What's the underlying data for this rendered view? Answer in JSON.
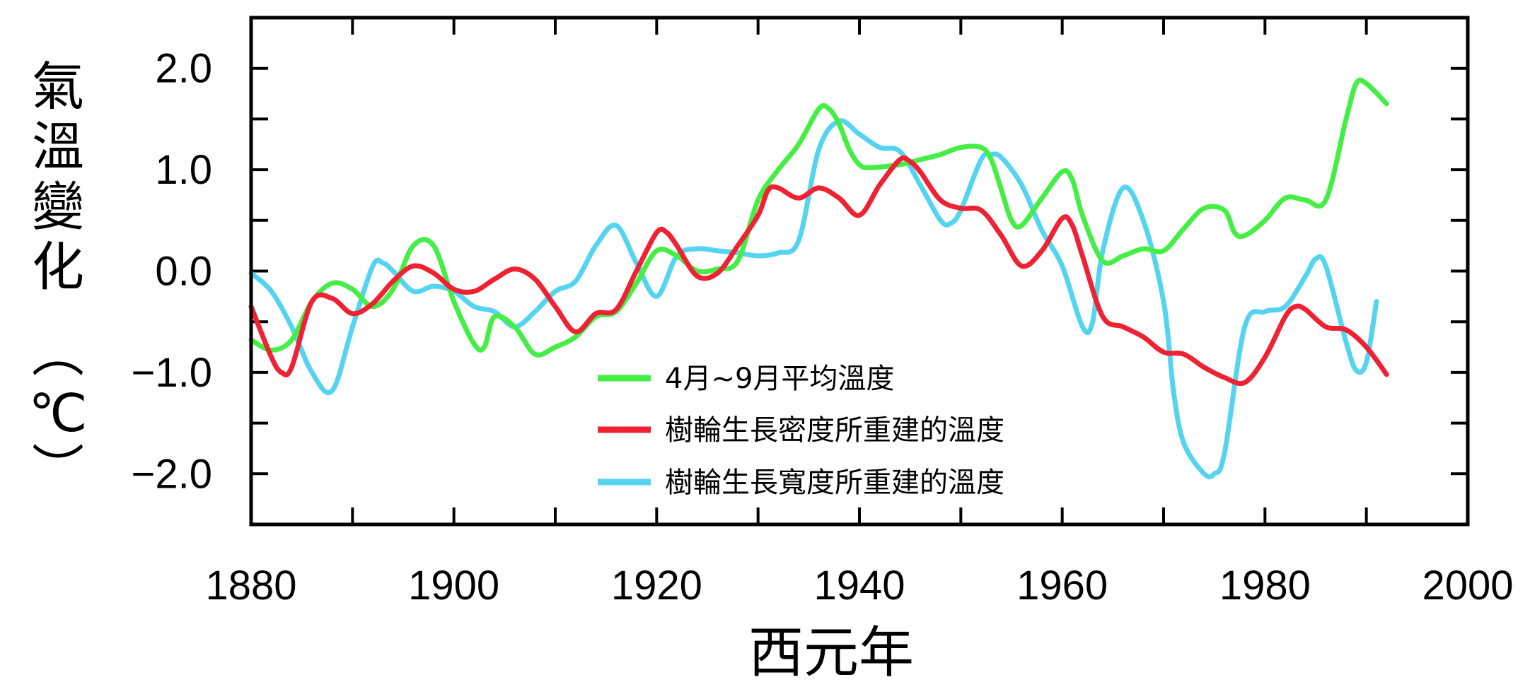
{
  "chart_data": {
    "type": "line",
    "xlabel": "西元年",
    "ylabel_chars": [
      "氣",
      "溫",
      "變",
      "化",
      "︵",
      "℃",
      "︶"
    ],
    "xlim": [
      1880,
      2000
    ],
    "ylim": [
      -2.5,
      2.5
    ],
    "xticks": [
      1880,
      1900,
      1920,
      1940,
      1960,
      1980,
      2000
    ],
    "xtick_labels": [
      "1880",
      "1900",
      "1920",
      "1940",
      "1960",
      "1980",
      "2000"
    ],
    "yticks": [
      2.0,
      1.0,
      0.0,
      -1.0,
      -2.0
    ],
    "ytick_labels": [
      "2.0",
      "1.0",
      "0.0",
      "−1.0",
      "−2.0"
    ],
    "legend_position": "lower-center",
    "series": [
      {
        "name": "4月~9月平均溫度",
        "color": "#44ee44",
        "x": [
          1880,
          1882,
          1884,
          1886,
          1888,
          1890,
          1892,
          1894,
          1896,
          1898,
          1900,
          1902,
          1903,
          1904,
          1906,
          1908,
          1910,
          1912,
          1914,
          1916,
          1918,
          1920,
          1922,
          1924,
          1926,
          1928,
          1930,
          1932,
          1934,
          1936,
          1937,
          1938,
          1939,
          1940,
          1941,
          1944,
          1946,
          1948,
          1950,
          1952,
          1953,
          1954,
          1955,
          1956,
          1958,
          1960,
          1961,
          1962,
          1964,
          1966,
          1968,
          1970,
          1972,
          1974,
          1976,
          1977,
          1978,
          1980,
          1982,
          1984,
          1986,
          1988,
          1989,
          1990,
          1992
        ],
        "values": [
          -0.68,
          -0.78,
          -0.68,
          -0.3,
          -0.12,
          -0.18,
          -0.35,
          -0.18,
          0.25,
          0.25,
          -0.3,
          -0.72,
          -0.75,
          -0.45,
          -0.55,
          -0.82,
          -0.75,
          -0.65,
          -0.45,
          -0.4,
          -0.12,
          0.2,
          0.15,
          0.0,
          0.02,
          0.1,
          0.7,
          1.0,
          1.25,
          1.6,
          1.6,
          1.45,
          1.2,
          1.05,
          1.02,
          1.05,
          1.1,
          1.15,
          1.22,
          1.22,
          1.1,
          0.8,
          0.5,
          0.45,
          0.72,
          0.98,
          0.9,
          0.55,
          0.1,
          0.15,
          0.22,
          0.2,
          0.42,
          0.62,
          0.6,
          0.38,
          0.35,
          0.5,
          0.72,
          0.7,
          0.7,
          1.5,
          1.85,
          1.85,
          1.65
        ]
      },
      {
        "name": "樹輪生長密度所重建的溫度",
        "color": "#ee2233",
        "x": [
          1880,
          1882,
          1883,
          1884,
          1886,
          1888,
          1890,
          1892,
          1894,
          1896,
          1898,
          1900,
          1902,
          1904,
          1906,
          1908,
          1910,
          1912,
          1914,
          1916,
          1918,
          1920,
          1921,
          1922,
          1924,
          1926,
          1928,
          1930,
          1931,
          1932,
          1934,
          1936,
          1938,
          1940,
          1942,
          1944,
          1945,
          1946,
          1948,
          1950,
          1952,
          1954,
          1956,
          1958,
          1960,
          1961,
          1962,
          1964,
          1966,
          1968,
          1970,
          1972,
          1974,
          1976,
          1978,
          1980,
          1982,
          1983,
          1984,
          1986,
          1988,
          1990,
          1992
        ],
        "values": [
          -0.35,
          -0.85,
          -1.0,
          -0.95,
          -0.3,
          -0.27,
          -0.42,
          -0.32,
          -0.1,
          0.05,
          -0.02,
          -0.18,
          -0.2,
          -0.08,
          0.02,
          -0.08,
          -0.35,
          -0.6,
          -0.42,
          -0.38,
          0.0,
          0.38,
          0.38,
          0.25,
          -0.05,
          -0.02,
          0.25,
          0.55,
          0.8,
          0.82,
          0.72,
          0.82,
          0.72,
          0.55,
          0.85,
          1.1,
          1.08,
          0.98,
          0.7,
          0.62,
          0.6,
          0.35,
          0.05,
          0.2,
          0.52,
          0.45,
          0.15,
          -0.45,
          -0.55,
          -0.65,
          -0.8,
          -0.82,
          -0.95,
          -1.05,
          -1.1,
          -0.85,
          -0.45,
          -0.35,
          -0.38,
          -0.55,
          -0.58,
          -0.75,
          -1.02
        ]
      },
      {
        "name": "樹輪生長寬度所重建的溫度",
        "color": "#55d4f0",
        "x": [
          1880,
          1882,
          1884,
          1886,
          1888,
          1890,
          1892,
          1893,
          1894,
          1896,
          1898,
          1900,
          1902,
          1904,
          1906,
          1908,
          1910,
          1912,
          1914,
          1916,
          1918,
          1920,
          1922,
          1924,
          1926,
          1928,
          1930,
          1932,
          1934,
          1936,
          1938,
          1940,
          1942,
          1944,
          1946,
          1948,
          1949,
          1950,
          1952,
          1953,
          1954,
          1956,
          1958,
          1960,
          1962,
          1963,
          1964,
          1966,
          1968,
          1970,
          1971,
          1972,
          1974,
          1975,
          1976,
          1978,
          1980,
          1982,
          1984,
          1985,
          1986,
          1988,
          1989,
          1990,
          1991
        ],
        "values": [
          -0.02,
          -0.2,
          -0.55,
          -1.0,
          -1.18,
          -0.55,
          0.05,
          0.08,
          0.0,
          -0.2,
          -0.15,
          -0.2,
          -0.35,
          -0.4,
          -0.55,
          -0.4,
          -0.2,
          -0.1,
          0.25,
          0.45,
          0.08,
          -0.25,
          0.15,
          0.22,
          0.2,
          0.18,
          0.15,
          0.18,
          0.3,
          1.2,
          1.48,
          1.35,
          1.22,
          1.18,
          0.85,
          0.5,
          0.47,
          0.6,
          1.1,
          1.15,
          1.12,
          0.85,
          0.4,
          0.05,
          -0.55,
          -0.5,
          0.2,
          0.82,
          0.5,
          -0.3,
          -1.2,
          -1.7,
          -2.0,
          -2.0,
          -1.8,
          -0.55,
          -0.4,
          -0.35,
          -0.05,
          0.12,
          0.05,
          -0.7,
          -0.98,
          -0.9,
          -0.3
        ]
      }
    ]
  }
}
